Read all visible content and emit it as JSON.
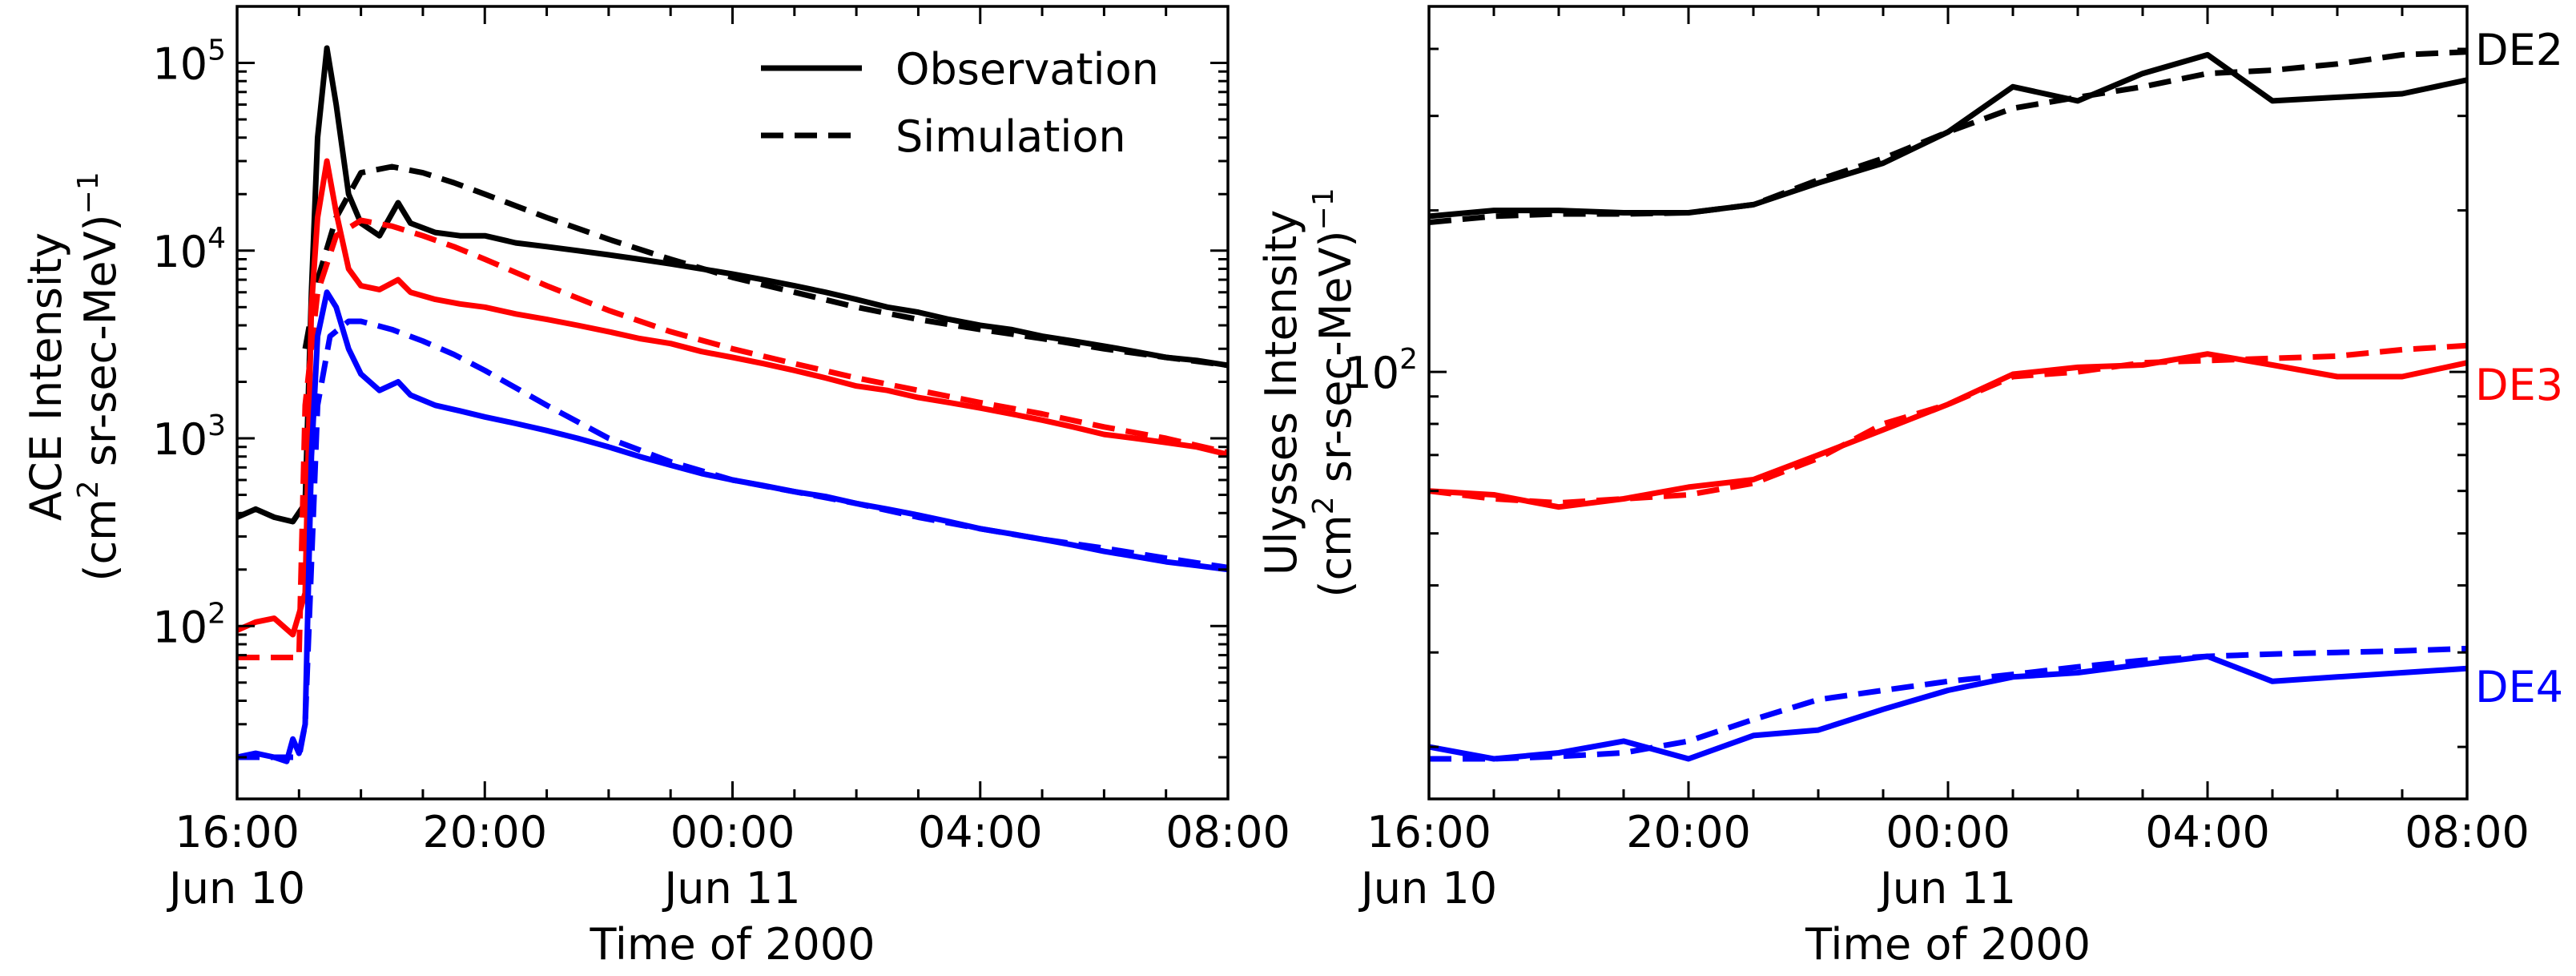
{
  "chart_data": [
    {
      "type": "line",
      "panel": "left",
      "title": "",
      "xlabel": "Time of 2000",
      "ylabel": "ACE Intensity",
      "ylabel_units_prefix": "(cm",
      "ylabel_units_exp": "2",
      "ylabel_units_mid": " sr-sec-MeV)",
      "ylabel_units_exp2": "−1",
      "yscale": "log",
      "xlim": [
        16,
        32
      ],
      "ylim": [
        12,
        200000
      ],
      "x_unit": "hours since Jun 10 00:00 UT",
      "x_ticks": [
        {
          "value": 16,
          "time": "16:00",
          "date": "Jun 10"
        },
        {
          "value": 20,
          "time": "20:00",
          "date": ""
        },
        {
          "value": 24,
          "time": "00:00",
          "date": "Jun 11"
        },
        {
          "value": 28,
          "time": "04:00",
          "date": ""
        },
        {
          "value": 32,
          "time": "08:00",
          "date": ""
        }
      ],
      "y_ticks": [
        {
          "value": 100,
          "base": "10",
          "exp": "2"
        },
        {
          "value": 1000,
          "base": "10",
          "exp": "3"
        },
        {
          "value": 10000,
          "base": "10",
          "exp": "4"
        },
        {
          "value": 100000,
          "base": "10",
          "exp": "5"
        }
      ],
      "legend": {
        "position": "top-right",
        "entries": [
          {
            "label": "Observation",
            "style": "solid"
          },
          {
            "label": "Simulation",
            "style": "dashed"
          }
        ]
      },
      "series": [
        {
          "name": "Observation (black)",
          "color": "#000000",
          "style": "solid",
          "x": [
            16.0,
            16.3,
            16.6,
            16.9,
            17.1,
            17.2,
            17.3,
            17.45,
            17.6,
            17.8,
            18.0,
            18.3,
            18.6,
            18.8,
            19.2,
            19.6,
            20.0,
            20.5,
            21.0,
            21.5,
            22.0,
            22.5,
            23.0,
            23.5,
            24.0,
            24.5,
            25.0,
            25.5,
            26.0,
            26.5,
            27.0,
            27.5,
            28.0,
            28.5,
            29.0,
            29.5,
            30.0,
            30.5,
            31.0,
            31.5,
            32.0
          ],
          "y": [
            380,
            420,
            380,
            360,
            450,
            6000,
            40000,
            120000,
            60000,
            20000,
            14000,
            12000,
            18000,
            14000,
            12500,
            12000,
            12000,
            11000,
            10500,
            10000,
            9500,
            9000,
            8500,
            8000,
            7500,
            7000,
            6500,
            6000,
            5500,
            5000,
            4700,
            4300,
            4000,
            3800,
            3500,
            3300,
            3100,
            2900,
            2700,
            2600,
            2450
          ]
        },
        {
          "name": "Simulation (black)",
          "color": "#000000",
          "style": "dashed",
          "x": [
            17.1,
            17.3,
            17.6,
            18.0,
            18.5,
            19.0,
            19.5,
            20.0,
            21.0,
            22.0,
            23.0,
            24.0,
            25.0,
            26.0,
            27.0,
            28.0,
            29.0,
            30.0,
            31.0,
            32.0
          ],
          "y": [
            3000,
            7000,
            15000,
            26000,
            28000,
            26000,
            23000,
            20000,
            15000,
            11500,
            9000,
            7200,
            6000,
            5000,
            4300,
            3800,
            3400,
            3000,
            2700,
            2450
          ]
        },
        {
          "name": "Observation (red)",
          "color": "#ff0000",
          "style": "solid",
          "x": [
            16.0,
            16.3,
            16.6,
            16.9,
            17.1,
            17.2,
            17.3,
            17.45,
            17.6,
            17.8,
            18.0,
            18.3,
            18.6,
            18.8,
            19.2,
            19.6,
            20.0,
            20.5,
            21.0,
            21.5,
            22.0,
            22.5,
            23.0,
            23.5,
            24.0,
            24.5,
            25.0,
            25.5,
            26.0,
            26.5,
            27.0,
            27.5,
            28.0,
            28.5,
            29.0,
            29.5,
            30.0,
            30.5,
            31.0,
            31.5,
            32.0
          ],
          "y": [
            95,
            105,
            110,
            90,
            150,
            5000,
            15000,
            30000,
            16000,
            8000,
            6500,
            6200,
            7000,
            6000,
            5500,
            5200,
            5000,
            4600,
            4300,
            4000,
            3700,
            3400,
            3200,
            2900,
            2700,
            2500,
            2300,
            2100,
            1900,
            1800,
            1650,
            1550,
            1450,
            1350,
            1250,
            1150,
            1050,
            1000,
            950,
            900,
            820
          ]
        },
        {
          "name": "Simulation (red)",
          "color": "#ff0000",
          "style": "dashed",
          "x": [
            16.0,
            16.5,
            16.9,
            17.0,
            17.1,
            17.3,
            17.6,
            18.0,
            18.5,
            19.0,
            19.5,
            20.0,
            21.0,
            22.0,
            23.0,
            24.0,
            25.0,
            26.0,
            27.0,
            28.0,
            29.0,
            30.0,
            31.0,
            32.0
          ],
          "y": [
            68,
            68,
            68,
            68,
            1500,
            6000,
            12000,
            14500,
            13500,
            12000,
            10500,
            9000,
            6500,
            4800,
            3700,
            3000,
            2500,
            2100,
            1800,
            1550,
            1350,
            1150,
            1000,
            840
          ]
        },
        {
          "name": "Observation (blue)",
          "color": "#0000ff",
          "style": "solid",
          "x": [
            16.0,
            16.3,
            16.6,
            16.8,
            16.9,
            17.0,
            17.1,
            17.2,
            17.3,
            17.45,
            17.6,
            17.8,
            18.0,
            18.3,
            18.6,
            18.8,
            19.2,
            19.6,
            20.0,
            20.5,
            21.0,
            21.5,
            22.0,
            22.5,
            23.0,
            23.5,
            24.0,
            24.5,
            25.0,
            25.5,
            26.0,
            26.5,
            27.0,
            27.5,
            28.0,
            28.5,
            29.0,
            29.5,
            30.0,
            30.5,
            31.0,
            31.5,
            32.0
          ],
          "y": [
            20,
            21,
            20,
            19,
            25,
            21,
            30,
            800,
            3500,
            6000,
            5000,
            3000,
            2200,
            1800,
            2000,
            1700,
            1500,
            1400,
            1300,
            1200,
            1100,
            1000,
            900,
            800,
            720,
            650,
            600,
            560,
            520,
            490,
            450,
            420,
            390,
            360,
            330,
            310,
            290,
            270,
            250,
            235,
            220,
            210,
            200
          ]
        },
        {
          "name": "Simulation (blue)",
          "color": "#0000ff",
          "style": "dashed",
          "x": [
            16.0,
            16.5,
            16.9,
            17.0,
            17.1,
            17.3,
            17.5,
            17.8,
            18.0,
            18.5,
            19.0,
            19.5,
            20.0,
            21.0,
            22.0,
            23.0,
            24.0,
            25.0,
            26.0,
            27.0,
            28.0,
            29.0,
            30.0,
            31.0,
            32.0
          ],
          "y": [
            20,
            20,
            20,
            20,
            30,
            1500,
            3500,
            4200,
            4200,
            3800,
            3300,
            2800,
            2300,
            1500,
            1000,
            750,
            600,
            520,
            450,
            380,
            330,
            290,
            260,
            230,
            205
          ]
        }
      ]
    },
    {
      "type": "line",
      "panel": "right",
      "title": "",
      "xlabel": "Time of 2000",
      "ylabel": "Ulysses Intensity",
      "ylabel_units_prefix": "(cm",
      "ylabel_units_exp": "2",
      "ylabel_units_mid": " sr-sec-MeV)",
      "ylabel_units_exp2": "−1",
      "yscale": "log",
      "xlim": [
        16,
        32
      ],
      "ylim": [
        16,
        480
      ],
      "x_unit": "hours since Jun 10 00:00 UT",
      "x_ticks": [
        {
          "value": 16,
          "time": "16:00",
          "date": "Jun 10"
        },
        {
          "value": 20,
          "time": "20:00",
          "date": ""
        },
        {
          "value": 24,
          "time": "00:00",
          "date": "Jun 11"
        },
        {
          "value": 28,
          "time": "04:00",
          "date": ""
        },
        {
          "value": 32,
          "time": "08:00",
          "date": ""
        }
      ],
      "y_ticks": [
        {
          "value": 100,
          "base": "10",
          "exp": "2"
        }
      ],
      "series_labels": [
        {
          "text": "DE2",
          "color": "#000000",
          "y": 400
        },
        {
          "text": "DE3",
          "color": "#ff0000",
          "y": 95
        },
        {
          "text": "DE4",
          "color": "#0000ff",
          "y": 26
        }
      ],
      "series": [
        {
          "name": "DE2 Observation",
          "color": "#000000",
          "style": "solid",
          "x": [
            16,
            17,
            18,
            19,
            20,
            21,
            22,
            23,
            24,
            25,
            26,
            27,
            28,
            29,
            30,
            31,
            32
          ],
          "y": [
            195,
            200,
            200,
            198,
            198,
            205,
            225,
            245,
            280,
            340,
            320,
            360,
            390,
            320,
            325,
            330,
            350
          ]
        },
        {
          "name": "DE2 Simulation",
          "color": "#000000",
          "style": "dashed",
          "x": [
            16,
            17,
            18,
            19,
            20,
            21,
            22,
            23,
            24,
            25,
            26,
            27,
            28,
            29,
            30,
            31,
            32
          ],
          "y": [
            190,
            195,
            197,
            197,
            198,
            205,
            228,
            250,
            280,
            310,
            325,
            340,
            360,
            365,
            375,
            390,
            395
          ]
        },
        {
          "name": "DE3 Observation",
          "color": "#ff0000",
          "style": "solid",
          "x": [
            16,
            17,
            18,
            19,
            20,
            21,
            22,
            23,
            24,
            25,
            26,
            27,
            28,
            29,
            30,
            31,
            32
          ],
          "y": [
            60,
            59,
            56,
            58,
            61,
            63,
            70,
            78,
            87,
            99,
            102,
            103,
            108,
            103,
            98,
            98,
            104
          ]
        },
        {
          "name": "DE3 Simulation",
          "color": "#ff0000",
          "style": "dashed",
          "x": [
            16,
            17,
            18,
            19,
            20,
            21,
            22,
            23,
            24,
            25,
            26,
            27,
            28,
            29,
            30,
            31,
            32
          ],
          "y": [
            60,
            58,
            57,
            58,
            59,
            62,
            69,
            80,
            87,
            98,
            100,
            104,
            105,
            106,
            107,
            110,
            112
          ]
        },
        {
          "name": "DE4 Observation",
          "color": "#0000ff",
          "style": "solid",
          "x": [
            16,
            17,
            18,
            19,
            20,
            21,
            22,
            23,
            24,
            25,
            26,
            27,
            28,
            29,
            30,
            31,
            32
          ],
          "y": [
            20,
            19,
            19.5,
            20.5,
            19,
            21,
            21.5,
            23.5,
            25.5,
            27,
            27.5,
            28.5,
            29.5,
            26.5,
            27,
            27.5,
            28
          ]
        },
        {
          "name": "DE4 Simulation",
          "color": "#0000ff",
          "style": "dashed",
          "x": [
            16,
            17,
            18,
            19,
            20,
            21,
            22,
            23,
            24,
            25,
            26,
            27,
            28,
            29,
            30,
            31,
            32
          ],
          "y": [
            19,
            19,
            19.2,
            19.5,
            20.5,
            22.5,
            24.5,
            25.5,
            26.5,
            27.3,
            28.2,
            29,
            29.5,
            29.8,
            30,
            30.2,
            30.5
          ]
        }
      ]
    }
  ]
}
